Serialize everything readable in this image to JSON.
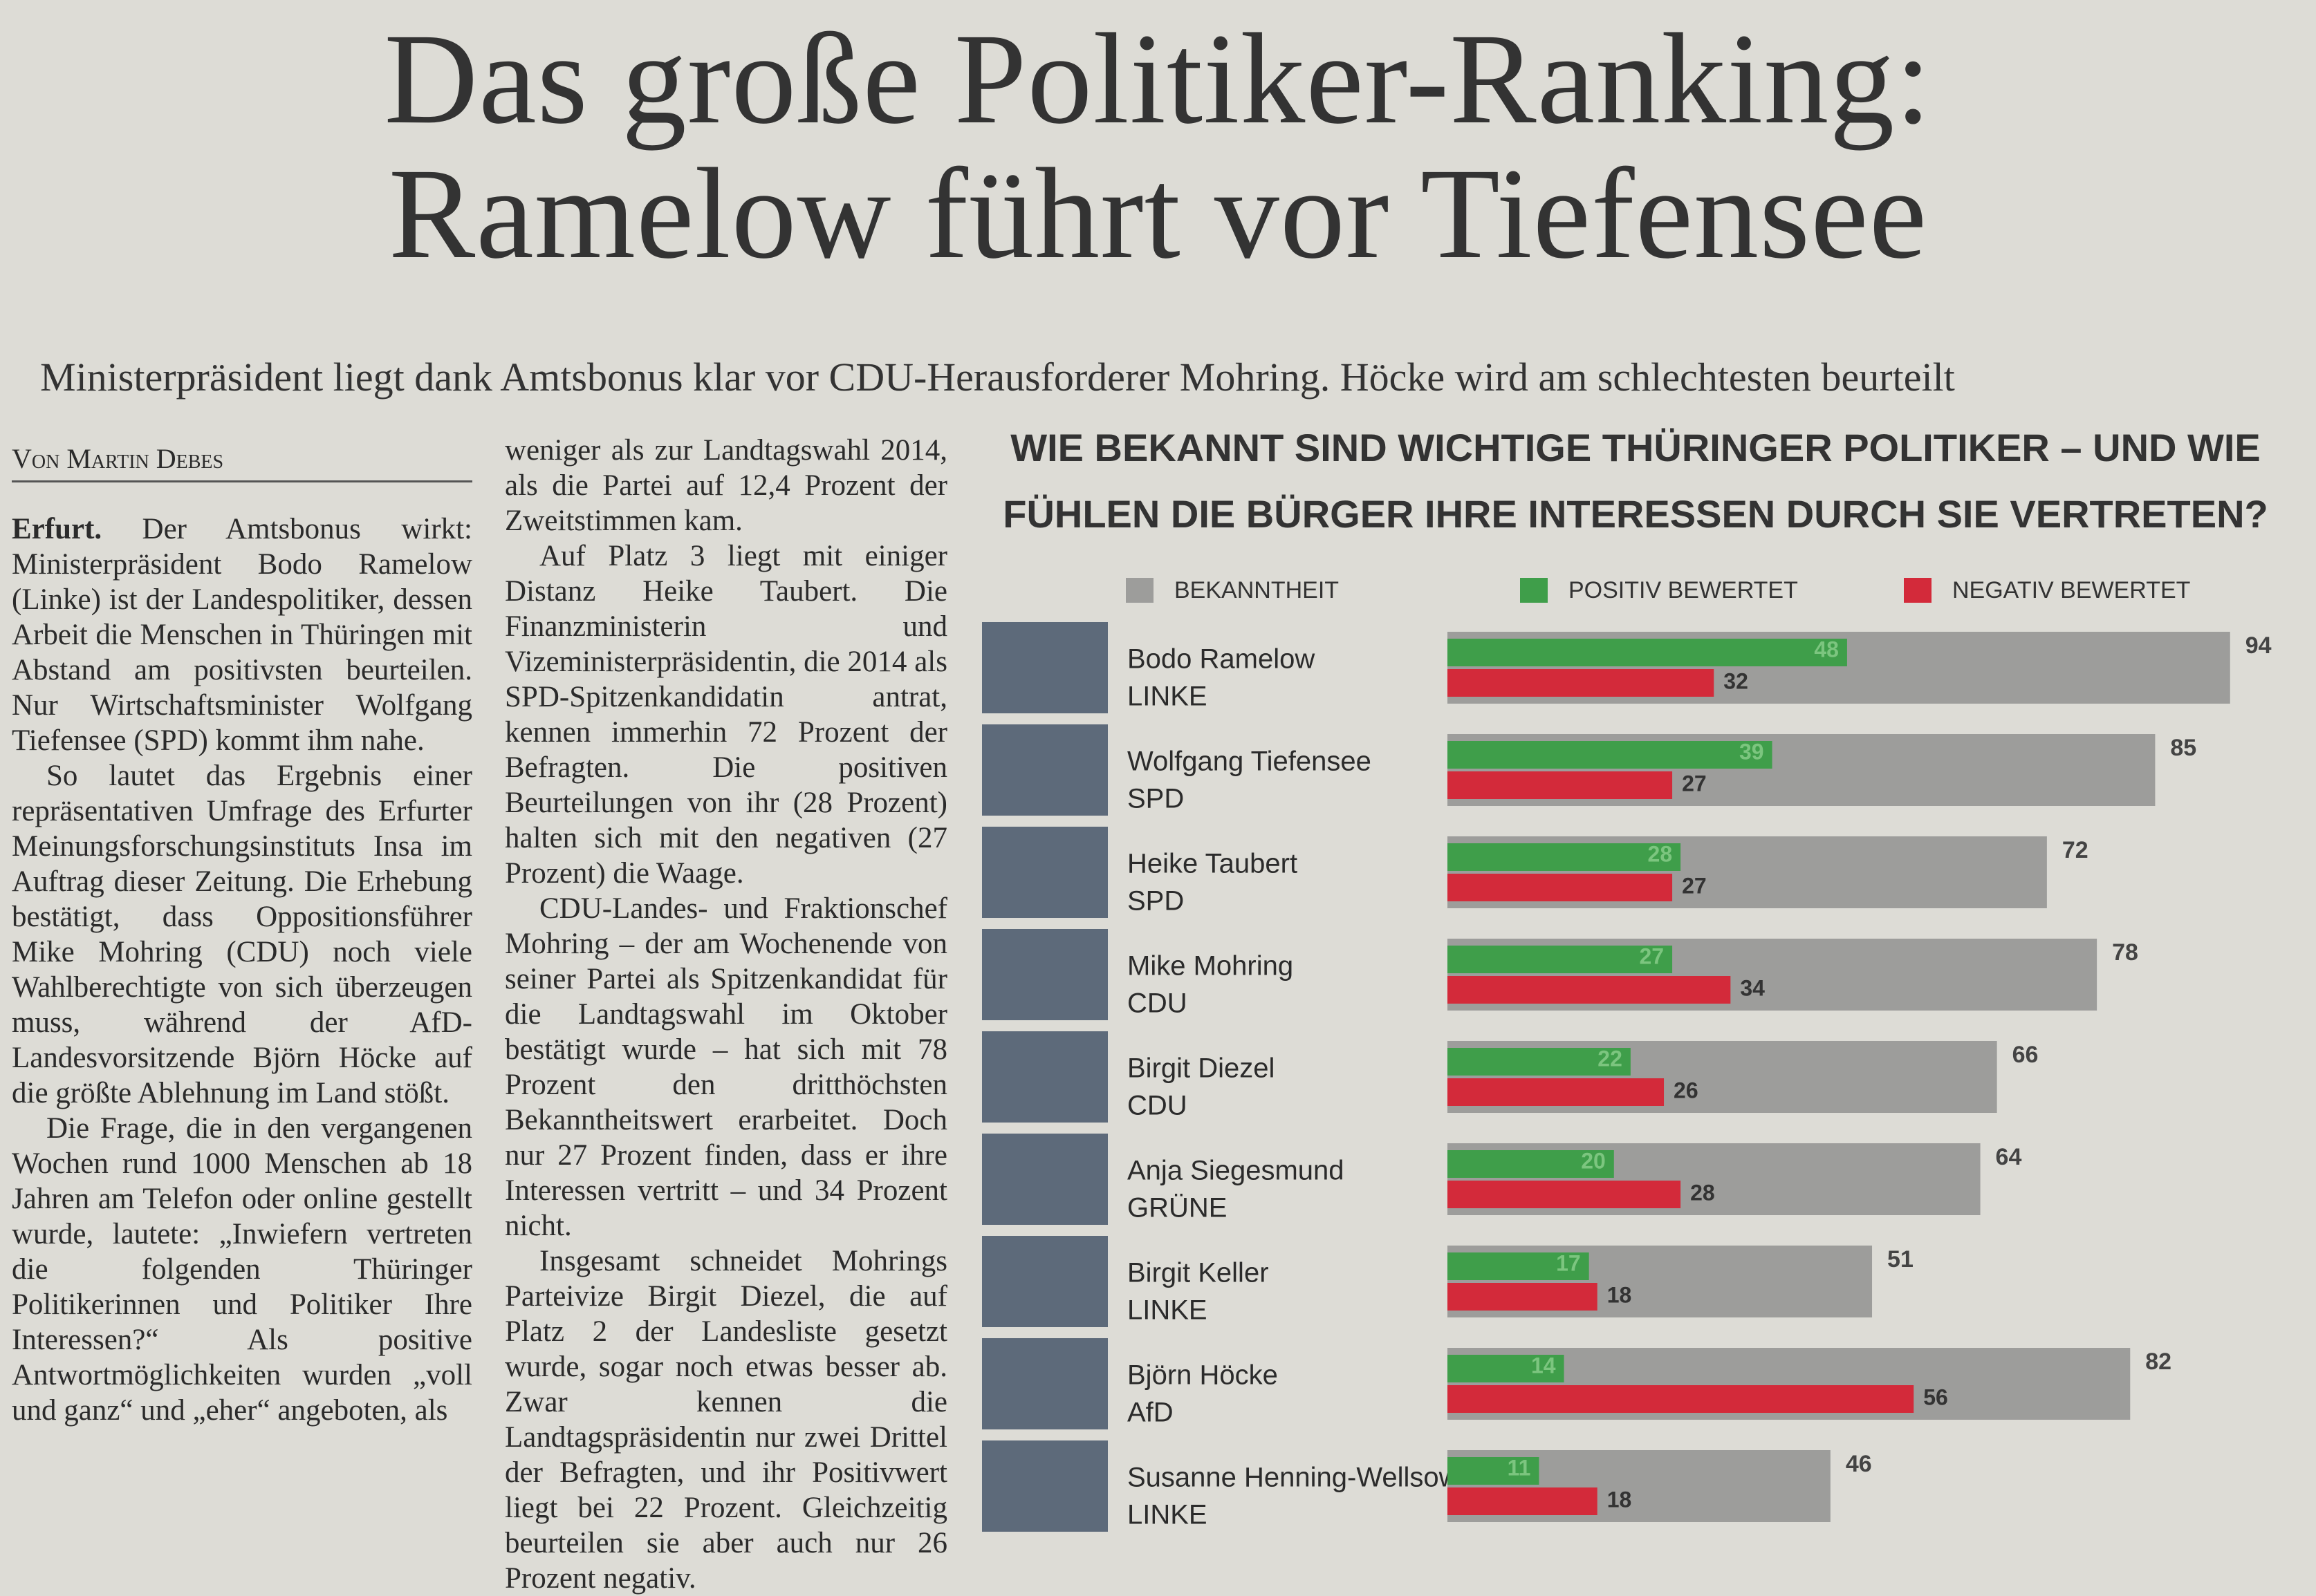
{
  "headline": [
    "Das große Politiker-Ranking:",
    "Ramelow führt vor Tiefensee"
  ],
  "subheadline": "Ministerpräsident liegt dank Amtsbonus klar vor CDU-Herausforderer Mohring. Höcke wird am schlechtesten beurteilt",
  "article": {
    "byline": "Von Martin Debes",
    "dateline": "Erfurt.",
    "columns": [
      [
        "Der Amtsbonus wirkt: Ministerpräsident Bodo Ramelow (Linke) ist der Landespolitiker, dessen Arbeit die Menschen in Thüringen mit Abstand am positivsten beurteilen. Nur Wirtschaftsminister Wolfgang Tiefensee (SPD) kommt ihm nahe.",
        "So lautet das Ergebnis einer repräsentativen Umfrage des Erfurter Meinungsforschungsinstituts Insa im Auftrag dieser Zeitung. Die Erhebung bestätigt, dass Oppositionsführer Mike Mohring (CDU) noch viele Wahlberechtigte von sich überzeugen muss, während der AfD-Landesvorsitzende Björn Höcke auf die größte Ablehnung im Land stößt.",
        "Die Frage, die in den vergangenen Wochen rund 1000 Menschen ab 18 Jahren am Telefon oder online gestellt wurde, lautete: „Inwiefern vertreten die folgenden Thüringer Politikerinnen und Politiker Ihre Interessen?“ Als positive Antwortmöglichkeiten wurden „voll und ganz“ und „eher“ angeboten, als"
      ],
      [
        "weniger als zur Landtagswahl 2014, als die Partei auf 12,4 Prozent der Zweitstimmen kam.",
        "Auf Platz 3 liegt mit einiger Distanz Heike Taubert. Die Finanzministerin und Vizeministerpräsidentin, die 2014 als SPD-Spitzenkandidatin antrat, kennen immerhin 72 Prozent der Befragten. Die positiven Beurteilungen von ihr (28 Prozent) halten sich mit den negativen (27 Prozent) die Waage.",
        "CDU-Landes- und Fraktionschef Mohring – der am Wochenende von seiner Partei als Spitzenkandidat für die Landtagswahl im Oktober bestätigt wurde – hat sich mit 78 Prozent den dritthöchsten Bekanntheitswert erarbeitet. Doch nur 27 Prozent finden, dass er ihre Interessen vertritt – und 34 Prozent nicht.",
        "Insgesamt schneidet Mohrings Parteivize Birgit Diezel, die auf Platz 2 der Landesliste gesetzt wurde, sogar noch etwas besser ab. Zwar kennen die Landtagspräsidentin nur zwei Drittel der Befragten, und ihr Positivwert liegt bei 22 Prozent. Gleichzeitig beurteilen sie aber auch nur 26 Prozent negativ."
      ]
    ]
  },
  "chart_data": {
    "type": "bar",
    "title": "WIE BEKANNT SIND WICHTIGE THÜRINGER POLITIKER – UND WIE FÜHLEN DIE BÜRGER IHRE INTERESSEN DURCH SIE VERTRETEN?",
    "categories": [
      "Bodo Ramelow",
      "Wolfgang Tiefensee",
      "Heike Taubert",
      "Mike Mohring",
      "Birgit Diezel",
      "Anja Siegesmund",
      "Birgit Keller",
      "Björn Höcke",
      "Susanne Henning-Wellsow"
    ],
    "parties": [
      "LINKE",
      "SPD",
      "SPD",
      "CDU",
      "CDU",
      "GRÜNE",
      "LINKE",
      "AfD",
      "LINKE"
    ],
    "series": [
      {
        "name": "BEKANNTHEIT",
        "color": "#9d9d9b",
        "values": [
          94,
          85,
          72,
          78,
          66,
          64,
          51,
          82,
          46
        ]
      },
      {
        "name": "POSITIV BEWERTET",
        "color": "#3f9e4a",
        "values": [
          48,
          39,
          28,
          27,
          22,
          20,
          17,
          14,
          11
        ]
      },
      {
        "name": "NEGATIV BEWERTET",
        "color": "#d32a3a",
        "values": [
          32,
          27,
          27,
          34,
          26,
          28,
          18,
          56,
          18
        ]
      }
    ]
  }
}
